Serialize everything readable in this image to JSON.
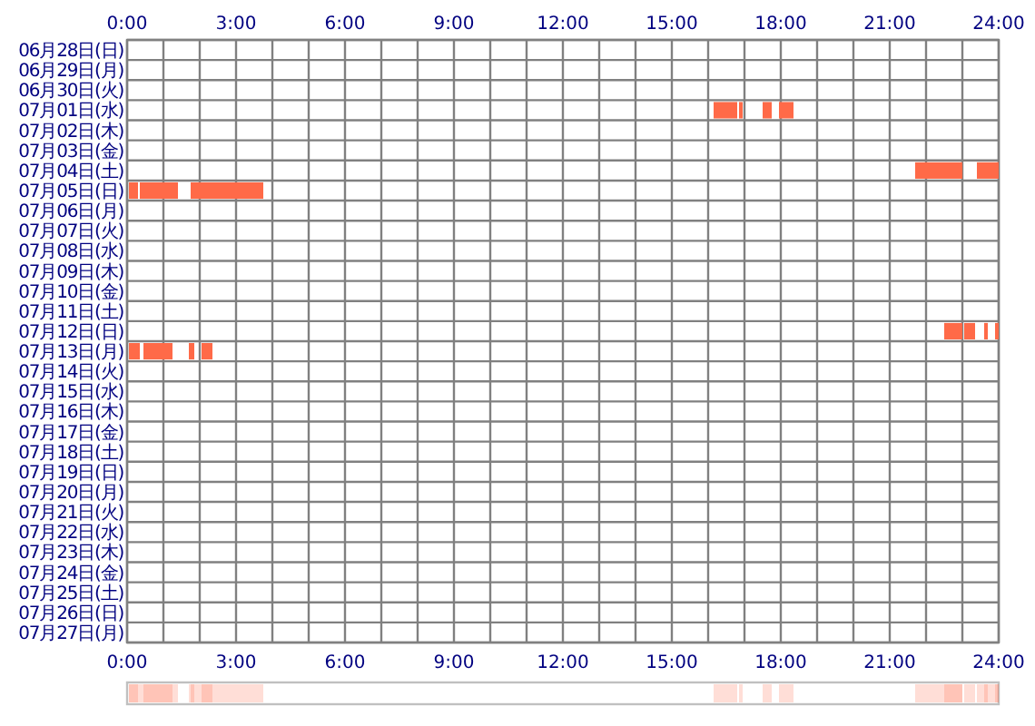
{
  "chart_data": {
    "type": "bar",
    "orientation": "horizontal",
    "categories": [
      "06月28日(日)",
      "06月29日(月)",
      "06月30日(火)",
      "07月01日(水)",
      "07月02日(木)",
      "07月03日(金)",
      "07月04日(土)",
      "07月05日(日)",
      "07月06日(月)",
      "07月07日(火)",
      "07月08日(水)",
      "07月09日(木)",
      "07月10日(金)",
      "07月11日(土)",
      "07月12日(日)",
      "07月13日(月)",
      "07月14日(火)",
      "07月15日(水)",
      "07月16日(木)",
      "07月17日(金)",
      "07月18日(土)",
      "07月19日(日)",
      "07月20日(月)",
      "07月21日(火)",
      "07月22日(水)",
      "07月23日(木)",
      "07月24日(金)",
      "07月25日(土)",
      "07月26日(日)",
      "07月27日(月)"
    ],
    "series": [
      {
        "color": "#ff6a48",
        "base": [
          null,
          null,
          null,
          16.15,
          null,
          null,
          21.7,
          0.05,
          null,
          null,
          null,
          null,
          null,
          null,
          22.5,
          0.05,
          null,
          null,
          null,
          null,
          null,
          null,
          null,
          null,
          null,
          null,
          null,
          null,
          null,
          null
        ],
        "values": [
          null,
          null,
          null,
          0.65,
          null,
          null,
          1.3,
          0.25,
          null,
          null,
          null,
          null,
          null,
          null,
          0.5,
          0.3,
          null,
          null,
          null,
          null,
          null,
          null,
          null,
          null,
          null,
          null,
          null,
          null,
          null,
          null
        ]
      },
      {
        "color": "#ff6a48",
        "base": [
          null,
          null,
          null,
          16.85,
          null,
          null,
          23.4,
          0.35,
          null,
          null,
          null,
          null,
          null,
          null,
          23.05,
          0.45,
          null,
          null,
          null,
          null,
          null,
          null,
          null,
          null,
          null,
          null,
          null,
          null,
          null,
          null
        ],
        "values": [
          null,
          null,
          null,
          0.1,
          null,
          null,
          0.6,
          1.05,
          null,
          null,
          null,
          null,
          null,
          null,
          0.3,
          0.8,
          null,
          null,
          null,
          null,
          null,
          null,
          null,
          null,
          null,
          null,
          null,
          null,
          null,
          null
        ]
      },
      {
        "color": "#ff6a48",
        "base": [
          null,
          null,
          null,
          17.5,
          null,
          null,
          null,
          1.75,
          null,
          null,
          null,
          null,
          null,
          null,
          23.6,
          1.7,
          null,
          null,
          null,
          null,
          null,
          null,
          null,
          null,
          null,
          null,
          null,
          null,
          null,
          null
        ],
        "values": [
          null,
          null,
          null,
          0.25,
          null,
          null,
          null,
          0.85,
          null,
          null,
          null,
          null,
          null,
          null,
          0.1,
          0.15,
          null,
          null,
          null,
          null,
          null,
          null,
          null,
          null,
          null,
          null,
          null,
          null,
          null,
          null
        ]
      },
      {
        "color": "#ff6a48",
        "base": [
          null,
          null,
          null,
          17.95,
          null,
          null,
          null,
          2.6,
          null,
          null,
          null,
          null,
          null,
          null,
          23.9,
          2.05,
          null,
          null,
          null,
          null,
          null,
          null,
          null,
          null,
          null,
          null,
          null,
          null,
          null,
          null
        ],
        "values": [
          null,
          null,
          null,
          0.4,
          null,
          null,
          null,
          1.15,
          null,
          null,
          null,
          null,
          null,
          null,
          0.1,
          0.3,
          null,
          null,
          null,
          null,
          null,
          null,
          null,
          null,
          null,
          null,
          null,
          null,
          null,
          null
        ]
      }
    ],
    "xlim": [
      0,
      24
    ],
    "xticks": [
      {
        "value": 0,
        "label": "0:00"
      },
      {
        "value": 1,
        "label": null
      },
      {
        "value": 2,
        "label": null
      },
      {
        "value": 3,
        "label": "3:00"
      },
      {
        "value": 4,
        "label": null
      },
      {
        "value": 5,
        "label": null
      },
      {
        "value": 6,
        "label": "6:00"
      },
      {
        "value": 7,
        "label": null
      },
      {
        "value": 8,
        "label": null
      },
      {
        "value": 9,
        "label": "9:00"
      },
      {
        "value": 10,
        "label": null
      },
      {
        "value": 11,
        "label": null
      },
      {
        "value": 12,
        "label": "12:00"
      },
      {
        "value": 13,
        "label": null
      },
      {
        "value": 14,
        "label": null
      },
      {
        "value": 15,
        "label": "15:00"
      },
      {
        "value": 16,
        "label": null
      },
      {
        "value": 17,
        "label": null
      },
      {
        "value": 18,
        "label": "18:00"
      },
      {
        "value": 19,
        "label": null
      },
      {
        "value": 20,
        "label": null
      },
      {
        "value": 21,
        "label": "21:00"
      },
      {
        "value": 22,
        "label": null
      },
      {
        "value": 23,
        "label": null
      },
      {
        "value": 24,
        "label": "24:00"
      }
    ],
    "x2lim": [
      0,
      24
    ],
    "x2ticks": [
      {
        "value": 0,
        "label": "0:00"
      },
      {
        "value": 3,
        "label": "3:00"
      },
      {
        "value": 6,
        "label": "6:00"
      },
      {
        "value": 9,
        "label": "9:00"
      },
      {
        "value": 12,
        "label": "12:00"
      },
      {
        "value": 15,
        "label": "15:00"
      },
      {
        "value": 18,
        "label": "18:00"
      },
      {
        "value": 21,
        "label": "21:00"
      },
      {
        "value": 24,
        "label": "24:00"
      }
    ],
    "grid": true
  }
}
